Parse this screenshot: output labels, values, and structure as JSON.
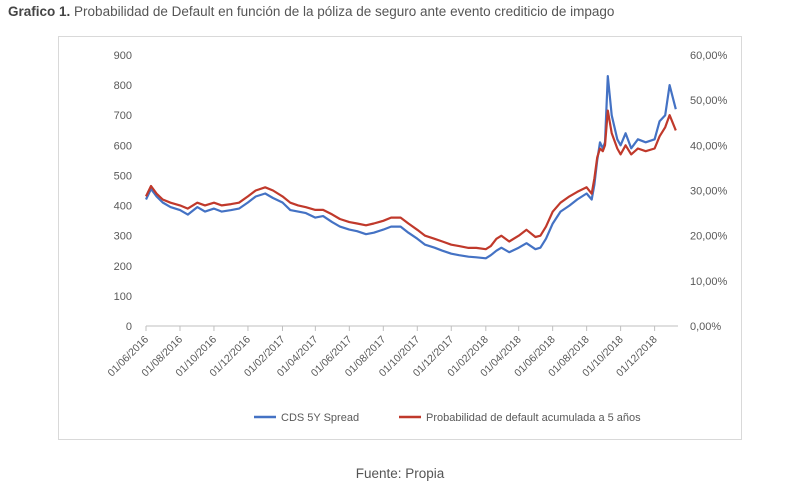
{
  "title": {
    "lead": "Grafico 1.",
    "text": "Probabilidad de Default en función de la póliza de seguro ante evento crediticio de impago"
  },
  "source": "Fuente: Propia",
  "chart_data": {
    "type": "line",
    "x_ticks": [
      "01/06/2016",
      "01/08/2016",
      "01/10/2016",
      "01/12/2016",
      "01/02/2017",
      "01/04/2017",
      "01/06/2017",
      "01/08/2017",
      "01/10/2017",
      "01/12/2017",
      "01/02/2018",
      "01/04/2018",
      "01/06/2018",
      "01/08/2018",
      "01/10/2018",
      "01/12/2018"
    ],
    "y_left": {
      "min": 0,
      "max": 900,
      "ticks": [
        "0",
        "100",
        "200",
        "300",
        "400",
        "500",
        "600",
        "700",
        "800",
        "900"
      ]
    },
    "y_right": {
      "min": 0,
      "max": 60,
      "ticks": [
        "0,00%",
        "10,00%",
        "20,00%",
        "30,00%",
        "40,00%",
        "50,00%",
        "60,00%"
      ]
    },
    "grid": false,
    "legend_position": "bottom",
    "series": [
      {
        "name": "CDS 5Y Spread",
        "color": "#4472c4",
        "axis": "left",
        "x": [
          "2016-06-01",
          "2016-06-10",
          "2016-06-20",
          "2016-07-01",
          "2016-07-15",
          "2016-08-01",
          "2016-08-15",
          "2016-09-01",
          "2016-09-15",
          "2016-10-01",
          "2016-10-15",
          "2016-11-01",
          "2016-11-15",
          "2016-12-01",
          "2016-12-15",
          "2017-01-01",
          "2017-01-15",
          "2017-02-01",
          "2017-02-15",
          "2017-03-01",
          "2017-03-15",
          "2017-04-01",
          "2017-04-15",
          "2017-05-01",
          "2017-05-15",
          "2017-06-01",
          "2017-06-15",
          "2017-07-01",
          "2017-07-15",
          "2017-08-01",
          "2017-08-15",
          "2017-09-01",
          "2017-09-15",
          "2017-10-01",
          "2017-10-15",
          "2017-11-01",
          "2017-11-15",
          "2017-12-01",
          "2017-12-15",
          "2018-01-01",
          "2018-01-15",
          "2018-02-01",
          "2018-02-10",
          "2018-02-20",
          "2018-03-01",
          "2018-03-15",
          "2018-04-01",
          "2018-04-15",
          "2018-05-01",
          "2018-05-10",
          "2018-05-20",
          "2018-06-01",
          "2018-06-15",
          "2018-07-01",
          "2018-07-15",
          "2018-08-01",
          "2018-08-10",
          "2018-08-15",
          "2018-08-20",
          "2018-08-25",
          "2018-08-30",
          "2018-09-03",
          "2018-09-08",
          "2018-09-15",
          "2018-09-25",
          "2018-10-01",
          "2018-10-10",
          "2018-10-20",
          "2018-11-01",
          "2018-11-15",
          "2018-12-01",
          "2018-12-10",
          "2018-12-20",
          "2018-12-28",
          "2019-01-08"
        ],
        "values": [
          420,
          455,
          430,
          410,
          395,
          385,
          370,
          395,
          380,
          390,
          380,
          385,
          390,
          410,
          430,
          440,
          425,
          410,
          385,
          380,
          375,
          360,
          365,
          345,
          330,
          320,
          315,
          305,
          310,
          320,
          330,
          330,
          310,
          290,
          270,
          260,
          250,
          240,
          235,
          230,
          228,
          225,
          235,
          250,
          260,
          245,
          260,
          275,
          255,
          260,
          290,
          340,
          380,
          400,
          420,
          440,
          420,
          470,
          550,
          610,
          590,
          610,
          830,
          700,
          620,
          600,
          640,
          590,
          620,
          610,
          620,
          680,
          700,
          800,
          720
        ]
      },
      {
        "name": "Probabilidad de default acumulada a 5 años",
        "color": "#c0392b",
        "axis": "right",
        "x": [
          "2016-06-01",
          "2016-06-10",
          "2016-06-20",
          "2016-07-01",
          "2016-07-15",
          "2016-08-01",
          "2016-08-15",
          "2016-09-01",
          "2016-09-15",
          "2016-10-01",
          "2016-10-15",
          "2016-11-01",
          "2016-11-15",
          "2016-12-01",
          "2016-12-15",
          "2017-01-01",
          "2017-01-15",
          "2017-02-01",
          "2017-02-15",
          "2017-03-01",
          "2017-03-15",
          "2017-04-01",
          "2017-04-15",
          "2017-05-01",
          "2017-05-15",
          "2017-06-01",
          "2017-06-15",
          "2017-07-01",
          "2017-07-15",
          "2017-08-01",
          "2017-08-15",
          "2017-09-01",
          "2017-09-15",
          "2017-10-01",
          "2017-10-15",
          "2017-11-01",
          "2017-11-15",
          "2017-12-01",
          "2017-12-15",
          "2018-01-01",
          "2018-01-15",
          "2018-02-01",
          "2018-02-10",
          "2018-02-20",
          "2018-03-01",
          "2018-03-15",
          "2018-04-01",
          "2018-04-15",
          "2018-05-01",
          "2018-05-10",
          "2018-05-20",
          "2018-06-01",
          "2018-06-15",
          "2018-07-01",
          "2018-07-15",
          "2018-08-01",
          "2018-08-10",
          "2018-08-15",
          "2018-08-20",
          "2018-08-25",
          "2018-08-30",
          "2018-09-03",
          "2018-09-08",
          "2018-09-15",
          "2018-09-25",
          "2018-10-01",
          "2018-10-10",
          "2018-10-20",
          "2018-11-01",
          "2018-11-15",
          "2018-12-01",
          "2018-12-10",
          "2018-12-20",
          "2018-12-28",
          "2019-01-08"
        ],
        "values": [
          28.7,
          31.0,
          29.3,
          28.0,
          27.3,
          26.7,
          26.0,
          27.3,
          26.7,
          27.3,
          26.7,
          27.0,
          27.3,
          28.7,
          30.0,
          30.7,
          30.0,
          28.7,
          27.3,
          26.7,
          26.3,
          25.7,
          25.7,
          24.7,
          23.7,
          23.0,
          22.7,
          22.3,
          22.7,
          23.3,
          24.0,
          24.0,
          22.7,
          21.3,
          20.0,
          19.3,
          18.7,
          18.0,
          17.7,
          17.3,
          17.3,
          17.0,
          17.7,
          19.3,
          20.0,
          18.7,
          20.0,
          21.3,
          19.7,
          20.0,
          22.0,
          25.3,
          27.3,
          28.7,
          29.7,
          30.7,
          29.3,
          32.7,
          37.3,
          39.3,
          38.7,
          40.0,
          47.7,
          42.7,
          39.3,
          38.0,
          40.0,
          38.0,
          39.3,
          38.7,
          39.3,
          42.0,
          44.0,
          46.7,
          43.3
        ]
      }
    ]
  }
}
